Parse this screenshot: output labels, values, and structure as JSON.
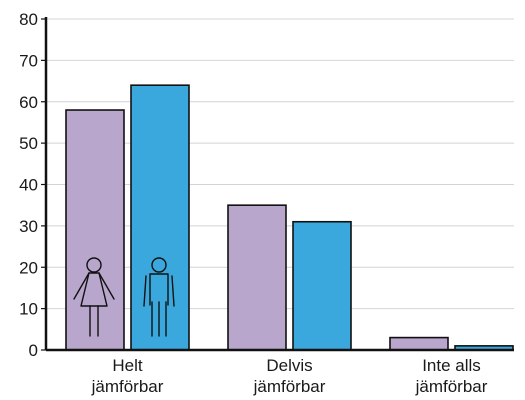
{
  "chart_data": {
    "type": "bar",
    "categories": [
      [
        "Helt",
        "jämförbar"
      ],
      [
        "Delvis",
        "jämförbar"
      ],
      [
        "Inte alls",
        "jämförbar"
      ]
    ],
    "series": [
      {
        "values": [
          58,
          35,
          3
        ],
        "color": "#b8a6cc",
        "icon": "woman-icon"
      },
      {
        "values": [
          64,
          31,
          1
        ],
        "color": "#3aa8dd",
        "icon": "man-icon"
      }
    ],
    "ylim": [
      0,
      80
    ],
    "yticks": [
      0,
      10,
      20,
      30,
      40,
      50,
      60,
      70,
      80
    ],
    "xlabel": "",
    "ylabel": "",
    "grid": true,
    "legend": "icons inside first group bars"
  }
}
